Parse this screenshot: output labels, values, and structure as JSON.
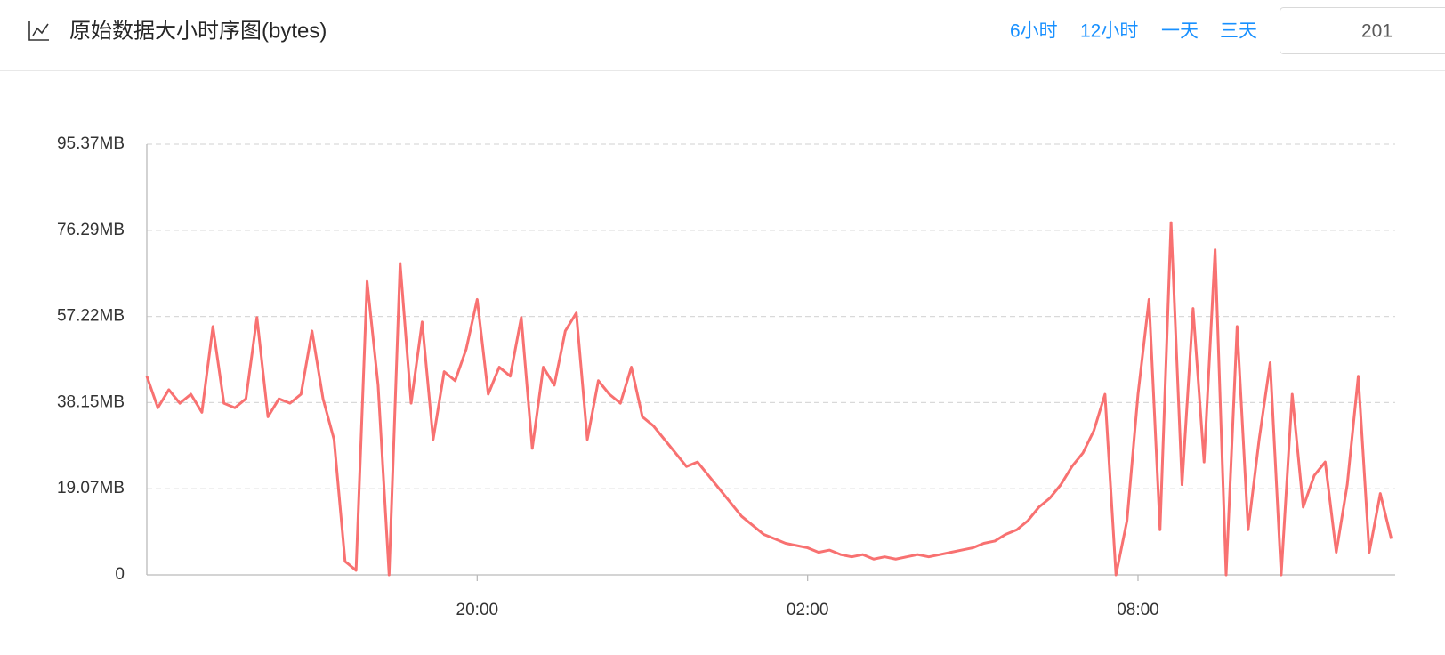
{
  "header": {
    "buttons": [
      "6小时",
      "12小时",
      "一天",
      "三天"
    ],
    "date_input": "201"
  },
  "chart_data": {
    "type": "line",
    "title": "原始数据大小时序图(bytes)",
    "color": "#f87171",
    "grid": true,
    "xlim": [
      14,
      36.67
    ],
    "xticks": [
      {
        "value": 20,
        "label": "20:00"
      },
      {
        "value": 26,
        "label": "02:00"
      },
      {
        "value": 32,
        "label": "08:00"
      }
    ],
    "ylim": [
      0,
      95.37
    ],
    "yticks": [
      0,
      {
        "value": 19.07,
        "label": "19.07MB"
      },
      {
        "value": 38.15,
        "label": "38.15MB"
      },
      {
        "value": 57.22,
        "label": "57.22MB"
      },
      {
        "value": 76.29,
        "label": "76.29MB"
      },
      {
        "value": 95.37,
        "label": "95.37MB"
      }
    ],
    "x": [
      14,
      14.2,
      14.4,
      14.6,
      14.8,
      15,
      15.2,
      15.4,
      15.6,
      15.8,
      16,
      16.2,
      16.4,
      16.6,
      16.8,
      17,
      17.2,
      17.4,
      17.6,
      17.8,
      18,
      18.2,
      18.4,
      18.6,
      18.8,
      19,
      19.2,
      19.4,
      19.6,
      19.8,
      20,
      20.2,
      20.4,
      20.6,
      20.8,
      21,
      21.2,
      21.4,
      21.6,
      21.8,
      22,
      22.2,
      22.4,
      22.6,
      22.8,
      23,
      23.2,
      23.4,
      23.6,
      23.8,
      24,
      24.2,
      24.4,
      24.6,
      24.8,
      25,
      25.2,
      25.4,
      25.6,
      25.8,
      26,
      26.2,
      26.4,
      26.6,
      26.8,
      27,
      27.2,
      27.4,
      27.6,
      27.8,
      28,
      28.2,
      28.4,
      28.6,
      28.8,
      29,
      29.2,
      29.4,
      29.6,
      29.8,
      30,
      30.2,
      30.4,
      30.6,
      30.8,
      31,
      31.2,
      31.4,
      31.6,
      31.8,
      32,
      32.2,
      32.4,
      32.6,
      32.8,
      33,
      33.2,
      33.4,
      33.6,
      33.8,
      34,
      34.2,
      34.4,
      34.6,
      34.8,
      35,
      35.2,
      35.4,
      35.6,
      35.8,
      36,
      36.2,
      36.4,
      36.6
    ],
    "values": [
      44,
      37,
      41,
      38,
      40,
      36,
      55,
      38,
      37,
      39,
      57,
      35,
      39,
      38,
      40,
      54,
      39,
      30,
      3,
      1,
      65,
      42,
      0,
      69,
      38,
      56,
      30,
      45,
      43,
      50,
      61,
      40,
      46,
      44,
      57,
      28,
      46,
      42,
      54,
      58,
      30,
      43,
      40,
      38,
      46,
      35,
      33,
      30,
      27,
      24,
      25,
      22,
      19,
      16,
      13,
      11,
      9,
      8,
      7,
      6.5,
      6,
      5,
      5.5,
      4.5,
      4,
      4.5,
      3.5,
      4,
      3.5,
      4,
      4.5,
      4,
      4.5,
      5,
      5.5,
      6,
      7,
      7.5,
      9,
      10,
      12,
      15,
      17,
      20,
      24,
      27,
      32,
      40,
      0,
      12,
      40,
      61,
      10,
      78,
      20,
      59,
      25,
      72,
      0,
      55,
      10,
      30,
      47,
      0,
      40,
      15,
      22,
      25,
      5,
      20,
      44,
      5,
      18,
      8
    ]
  }
}
